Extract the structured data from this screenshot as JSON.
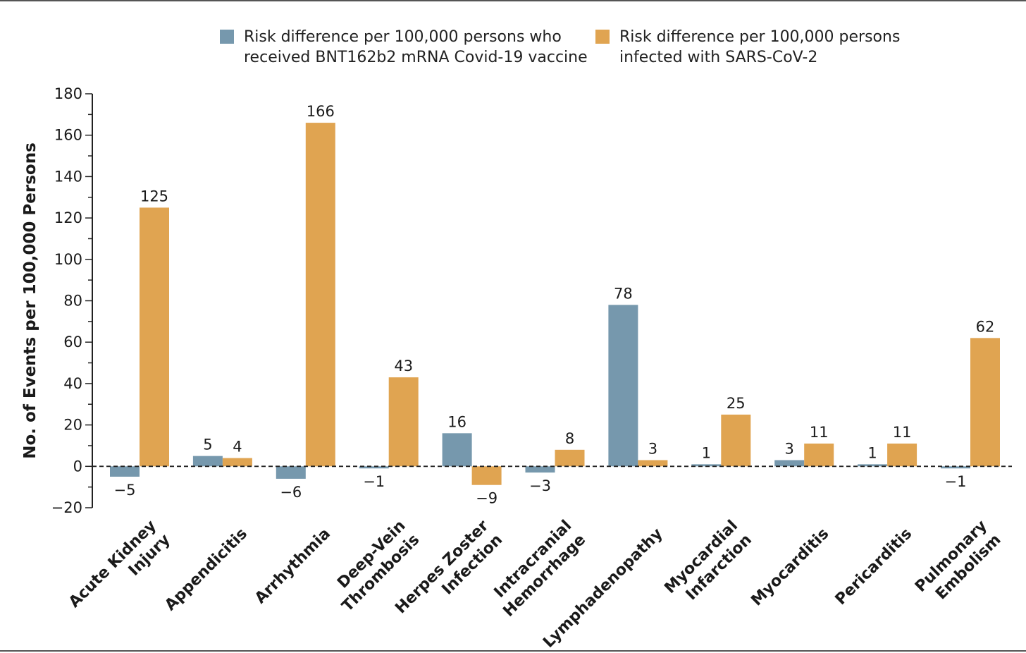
{
  "colors": {
    "vaccine": "#7698ad",
    "infection": "#e0a451",
    "axis": "#222222"
  },
  "chart_data": {
    "type": "bar",
    "title": "",
    "xlabel": "",
    "ylabel": "No. of Events per 100,000 Persons",
    "ylim": [
      -20,
      180
    ],
    "yticks": [
      -20,
      0,
      20,
      40,
      60,
      80,
      100,
      120,
      140,
      160,
      180
    ],
    "ytick_labels": [
      "−20",
      "0",
      "20",
      "40",
      "60",
      "80",
      "100",
      "120",
      "140",
      "160",
      "180"
    ],
    "grid": false,
    "legend_position": "top",
    "zero_line": "dashed",
    "categories": [
      "Acute Kidney\nInjury",
      "Appendicitis",
      "Arrhythmia",
      "Deep-Vein\nThrombosis",
      "Herpes Zoster\nInfection",
      "Intracranial\nHemorrhage",
      "Lymphadenopathy",
      "Myocardial\nInfarction",
      "Myocarditis",
      "Pericarditis",
      "Pulmonary\nEmbolism"
    ],
    "series": [
      {
        "name": "Risk difference per 100,000 persons who\nreceived BNT162b2 mRNA Covid-19 vaccine",
        "color": "#7698ad",
        "values": [
          -5,
          5,
          -6,
          -1,
          16,
          -3,
          78,
          1,
          3,
          1,
          -1
        ],
        "labels": [
          "−5",
          "5",
          "−6",
          "−1",
          "16",
          "−3",
          "78",
          "1",
          "3",
          "1",
          "−1"
        ]
      },
      {
        "name": "Risk difference per 100,000 persons\ninfected with SARS-CoV-2",
        "color": "#e0a451",
        "values": [
          125,
          4,
          166,
          43,
          -9,
          8,
          3,
          25,
          11,
          11,
          62
        ],
        "labels": [
          "125",
          "4",
          "166",
          "43",
          "−9",
          "8",
          "3",
          "25",
          "11",
          "11",
          "62"
        ]
      }
    ]
  }
}
